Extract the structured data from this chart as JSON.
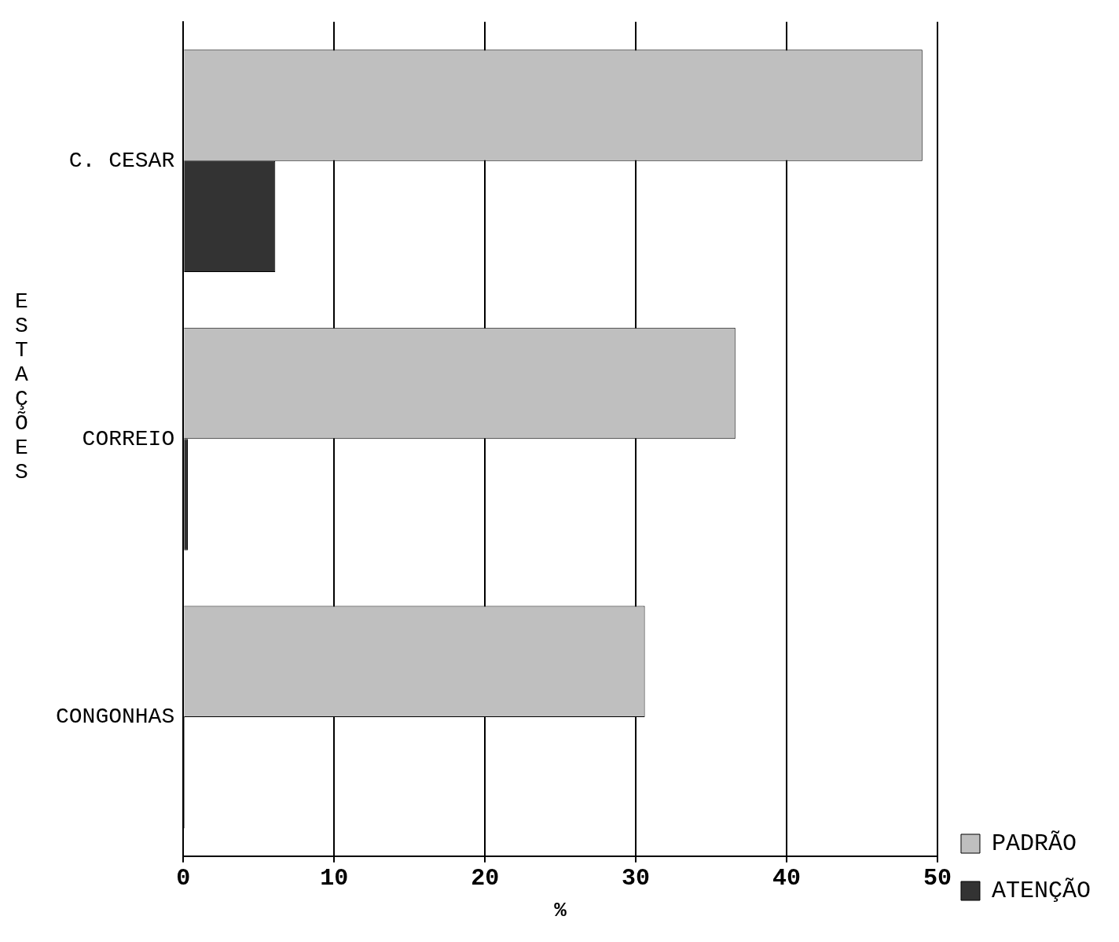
{
  "chart_data": {
    "type": "bar",
    "orientation": "horizontal",
    "xlabel": "%",
    "ylabel": "ESTAÇÕES",
    "categories": [
      "C. CESAR",
      "CORREIO",
      "CONGONHAS"
    ],
    "series": [
      {
        "name": "PADRÃO",
        "color": "#bfbfbf",
        "values": [
          49.0,
          36.6,
          30.6
        ]
      },
      {
        "name": "ATENÇÃO",
        "color": "#333333",
        "values": [
          6.1,
          0.3,
          0.1
        ]
      }
    ],
    "xlim": [
      0,
      50
    ],
    "xticks": [
      0,
      10,
      20,
      30,
      40,
      50
    ],
    "grid": "x",
    "legend": "bottom right"
  }
}
